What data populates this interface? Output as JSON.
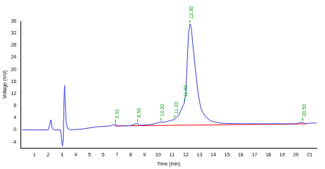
{
  "chart_data": {
    "type": "line",
    "x_label": "Time (min)",
    "y_label": "Voltage (mV)",
    "xlim": [
      0,
      21.5
    ],
    "xticks": [
      1,
      2,
      3,
      4,
      5,
      6,
      7,
      8,
      9,
      10,
      11,
      12,
      13,
      14,
      15,
      16,
      17,
      18,
      19,
      20,
      21
    ],
    "ylim": [
      -6,
      36
    ],
    "yticks": [
      -4,
      0,
      4,
      8,
      12,
      16,
      20,
      24,
      28,
      32,
      36
    ],
    "grid": false,
    "series": [
      {
        "color": "#3a3ad0",
        "line_style": "solid",
        "x": [
          0.1,
          1,
          2,
          2.1,
          2.2,
          2.3,
          2.4,
          2.9,
          3.0,
          3.05,
          3.1,
          3.15,
          3.2,
          3.25,
          3.3,
          3.4,
          3.6,
          4.5,
          5.5,
          6.5,
          6.9,
          7.0,
          8,
          8.5,
          8.6,
          9.5,
          10.2,
          10.5,
          11.2,
          11.5,
          11.9,
          12.0,
          12.1,
          12.2,
          12.3,
          12.4,
          12.5,
          12.7,
          12.9,
          13.1,
          13.4,
          13.8,
          14.5,
          16,
          18,
          20,
          20.5,
          20.6,
          21.5
        ],
        "values": [
          0,
          0,
          0,
          1.5,
          3.3,
          0.5,
          0,
          0,
          -4,
          -5.4,
          -3,
          10,
          14.8,
          8,
          3,
          0.5,
          0,
          0.3,
          1.0,
          1.3,
          2.0,
          1.3,
          1.4,
          2.2,
          1.5,
          1.8,
          2.6,
          2.6,
          3.5,
          5,
          9,
          12,
          22,
          32,
          35,
          34,
          29,
          20,
          12,
          7,
          4.5,
          3,
          2.2,
          2,
          2,
          2,
          2.6,
          2.1,
          2.3
        ]
      },
      {
        "color": "#ff0000",
        "line_style": "solid",
        "x": [
          6.8,
          20.8
        ],
        "values": [
          1.3,
          2.0
        ]
      }
    ],
    "annotations": [
      {
        "x": 6.9,
        "text": "6.91"
      },
      {
        "x": 8.5,
        "text": "8.50"
      },
      {
        "x": 10.2,
        "text": "10.20"
      },
      {
        "x": 11.2,
        "text": "11.20"
      },
      {
        "x": 11.9,
        "text": "11.90"
      },
      {
        "x": 12.3,
        "text": "12.30"
      },
      {
        "x": 20.5,
        "text": "20.50"
      }
    ]
  }
}
